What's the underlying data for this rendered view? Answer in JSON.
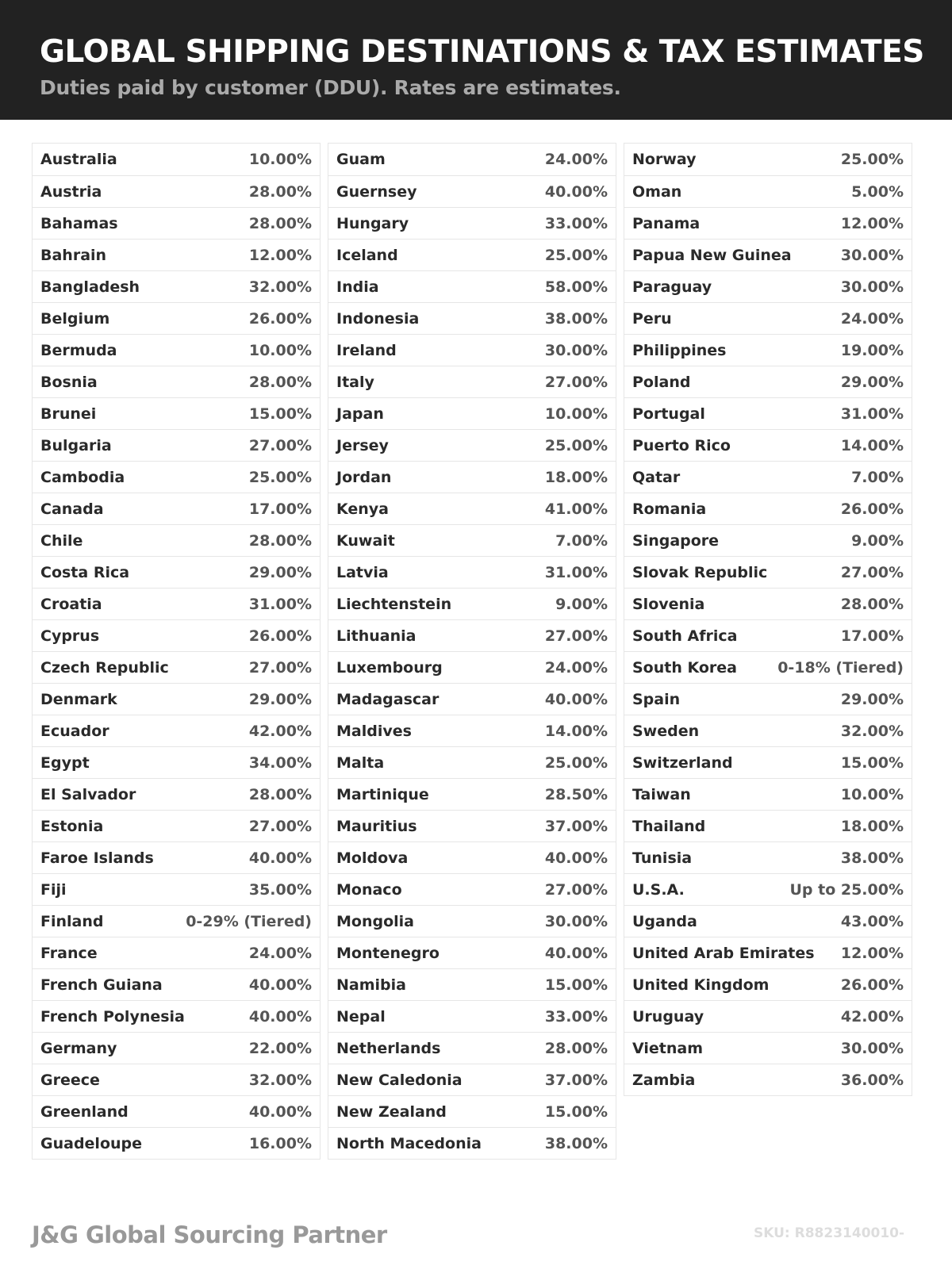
{
  "header": {
    "title": "GLOBAL SHIPPING DESTINATIONS & TAX ESTIMATES",
    "subtitle": "Duties paid by customer (DDU). Rates are estimates."
  },
  "columns": [
    [
      [
        "Australia",
        "10.00%"
      ],
      [
        "Austria",
        "28.00%"
      ],
      [
        "Bahamas",
        "28.00%"
      ],
      [
        "Bahrain",
        "12.00%"
      ],
      [
        "Bangladesh",
        "32.00%"
      ],
      [
        "Belgium",
        "26.00%"
      ],
      [
        "Bermuda",
        "10.00%"
      ],
      [
        "Bosnia",
        "28.00%"
      ],
      [
        "Brunei",
        "15.00%"
      ],
      [
        "Bulgaria",
        "27.00%"
      ],
      [
        "Cambodia",
        "25.00%"
      ],
      [
        "Canada",
        "17.00%"
      ],
      [
        "Chile",
        "28.00%"
      ],
      [
        "Costa Rica",
        "29.00%"
      ],
      [
        "Croatia",
        "31.00%"
      ],
      [
        "Cyprus",
        "26.00%"
      ],
      [
        "Czech Republic",
        "27.00%"
      ],
      [
        "Denmark",
        "29.00%"
      ],
      [
        "Ecuador",
        "42.00%"
      ],
      [
        "Egypt",
        "34.00%"
      ],
      [
        "El Salvador",
        "28.00%"
      ],
      [
        "Estonia",
        "27.00%"
      ],
      [
        "Faroe Islands",
        "40.00%"
      ],
      [
        "Fiji",
        "35.00%"
      ],
      [
        "Finland",
        "0-29% (Tiered)"
      ],
      [
        "France",
        "24.00%"
      ],
      [
        "French Guiana",
        "40.00%"
      ],
      [
        "French Polynesia",
        "40.00%"
      ],
      [
        "Germany",
        "22.00%"
      ],
      [
        "Greece",
        "32.00%"
      ],
      [
        "Greenland",
        "40.00%"
      ],
      [
        "Guadeloupe",
        "16.00%"
      ]
    ],
    [
      [
        "Guam",
        "24.00%"
      ],
      [
        "Guernsey",
        "40.00%"
      ],
      [
        "Hungary",
        "33.00%"
      ],
      [
        "Iceland",
        "25.00%"
      ],
      [
        "India",
        "58.00%"
      ],
      [
        "Indonesia",
        "38.00%"
      ],
      [
        "Ireland",
        "30.00%"
      ],
      [
        "Italy",
        "27.00%"
      ],
      [
        "Japan",
        "10.00%"
      ],
      [
        "Jersey",
        "25.00%"
      ],
      [
        "Jordan",
        "18.00%"
      ],
      [
        "Kenya",
        "41.00%"
      ],
      [
        "Kuwait",
        "7.00%"
      ],
      [
        "Latvia",
        "31.00%"
      ],
      [
        "Liechtenstein",
        "9.00%"
      ],
      [
        "Lithuania",
        "27.00%"
      ],
      [
        "Luxembourg",
        "24.00%"
      ],
      [
        "Madagascar",
        "40.00%"
      ],
      [
        "Maldives",
        "14.00%"
      ],
      [
        "Malta",
        "25.00%"
      ],
      [
        "Martinique",
        "28.50%"
      ],
      [
        "Mauritius",
        "37.00%"
      ],
      [
        "Moldova",
        "40.00%"
      ],
      [
        "Monaco",
        "27.00%"
      ],
      [
        "Mongolia",
        "30.00%"
      ],
      [
        "Montenegro",
        "40.00%"
      ],
      [
        "Namibia",
        "15.00%"
      ],
      [
        "Nepal",
        "33.00%"
      ],
      [
        "Netherlands",
        "28.00%"
      ],
      [
        "New Caledonia",
        "37.00%"
      ],
      [
        "New Zealand",
        "15.00%"
      ],
      [
        "North Macedonia",
        "38.00%"
      ]
    ],
    [
      [
        "Norway",
        "25.00%"
      ],
      [
        "Oman",
        "5.00%"
      ],
      [
        "Panama",
        "12.00%"
      ],
      [
        "Papua New Guinea",
        "30.00%"
      ],
      [
        "Paraguay",
        "30.00%"
      ],
      [
        "Peru",
        "24.00%"
      ],
      [
        "Philippines",
        "19.00%"
      ],
      [
        "Poland",
        "29.00%"
      ],
      [
        "Portugal",
        "31.00%"
      ],
      [
        "Puerto Rico",
        "14.00%"
      ],
      [
        "Qatar",
        "7.00%"
      ],
      [
        "Romania",
        "26.00%"
      ],
      [
        "Singapore",
        "9.00%"
      ],
      [
        "Slovak Republic",
        "27.00%"
      ],
      [
        "Slovenia",
        "28.00%"
      ],
      [
        "South Africa",
        "17.00%"
      ],
      [
        "South Korea",
        "0-18% (Tiered)"
      ],
      [
        "Spain",
        "29.00%"
      ],
      [
        "Sweden",
        "32.00%"
      ],
      [
        "Switzerland",
        "15.00%"
      ],
      [
        "Taiwan",
        "10.00%"
      ],
      [
        "Thailand",
        "18.00%"
      ],
      [
        "Tunisia",
        "38.00%"
      ],
      [
        "U.S.A.",
        "Up to 25.00%"
      ],
      [
        "Uganda",
        "43.00%"
      ],
      [
        "United Arab Emirates",
        "12.00%"
      ],
      [
        "United Kingdom",
        "26.00%"
      ],
      [
        "Uruguay",
        "42.00%"
      ],
      [
        "Vietnam",
        "30.00%"
      ],
      [
        "Zambia",
        "36.00%"
      ]
    ]
  ],
  "footer": {
    "brand": "J&G Global Sourcing Partner",
    "sku": "SKU: R8823140010-"
  }
}
